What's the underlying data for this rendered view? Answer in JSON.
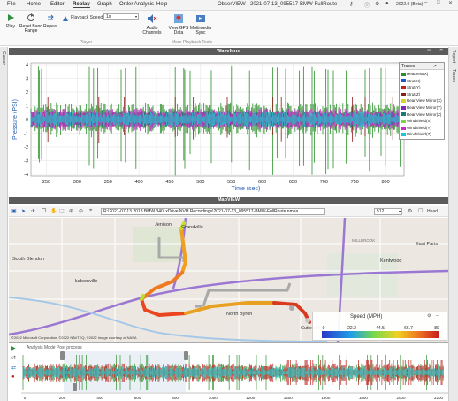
{
  "menu": [
    "File",
    "Home",
    "Editor",
    "Replay",
    "Graph",
    "Order Analysis",
    "Help"
  ],
  "window_title": "ObserVIEW - 2021-07-13_095517-BMW-FullRoute",
  "version": "2022.0 (Beta)",
  "ribbon": {
    "play": "Play",
    "reset": "Reset Band Range",
    "repeat": "Repeat",
    "playback_speed_label": "Playback Speed:",
    "playback_speed_value": "1x",
    "audio": "Audio Channels",
    "gps": "View GPS Data",
    "multimedia": "Multimedia Sync",
    "group_player": "Player",
    "group_more": "More Playback Tools"
  },
  "left_tab": "Cursor",
  "right_tabs": [
    "Report",
    "Traces"
  ],
  "waveform": {
    "title": "Waveform",
    "ylabel": "Pressure (PSI)",
    "xlabel": "Time (sec)",
    "yticks": [
      "4",
      "3",
      "2",
      "1",
      "0",
      "-1",
      "-2",
      "-3",
      "-4"
    ],
    "xticks": [
      "250",
      "300",
      "350",
      "400",
      "450",
      "500",
      "550",
      "600",
      "650",
      "700",
      "750",
      "800"
    ],
    "legend_title": "Traces",
    "legend": [
      {
        "name": "Headrest(X)",
        "color": "#2a8f2a"
      },
      {
        "name": "Strut(X)",
        "color": "#1f56c9"
      },
      {
        "name": "Strut(Y)",
        "color": "#c21f1f"
      },
      {
        "name": "Strut(Z)",
        "color": "#8a1c1c"
      },
      {
        "name": "Rear View Mirror(X)",
        "color": "#d6d62a"
      },
      {
        "name": "Rear View Mirror(Y)",
        "color": "#7a2ab8"
      },
      {
        "name": "Rear View Mirror(Z)",
        "color": "#1c7a7a"
      },
      {
        "name": "Windshield(X)",
        "color": "#7ad14a"
      },
      {
        "name": "Windshield(Y)",
        "color": "#c52fc5"
      },
      {
        "name": "Windshield(Z)",
        "color": "#1ec7cf"
      }
    ]
  },
  "map": {
    "title": "MapVIEW",
    "path": "R:\\2021-07-13 2018 BMW 340i xDrive NVH Recordings\\2021-07-13_095517-BMW-FullRoute.nmea",
    "zoom": "512",
    "head_label": "Head",
    "cities": [
      "Jenison",
      "Grandville",
      "South Blendon",
      "Hudsonville",
      "North Byron",
      "Cutlerville",
      "Kentwood",
      "East Paris",
      "MILLBROOK"
    ],
    "copyright": "©2022 Microsoft Corporation, ©2022 NAVTEQ, ©2022 Image courtesy of NASA",
    "speed_title": "Speed (MPH)",
    "speed_ticks": [
      "0",
      "22.2",
      "44.5",
      "66.7",
      "89"
    ]
  },
  "overview": {
    "title": "Analysis Mode Post process",
    "xticks": [
      "0",
      "200",
      "400",
      "600",
      "800",
      "1000",
      "1200",
      "1400",
      "1600",
      "1800",
      "2000",
      "2200"
    ]
  }
}
